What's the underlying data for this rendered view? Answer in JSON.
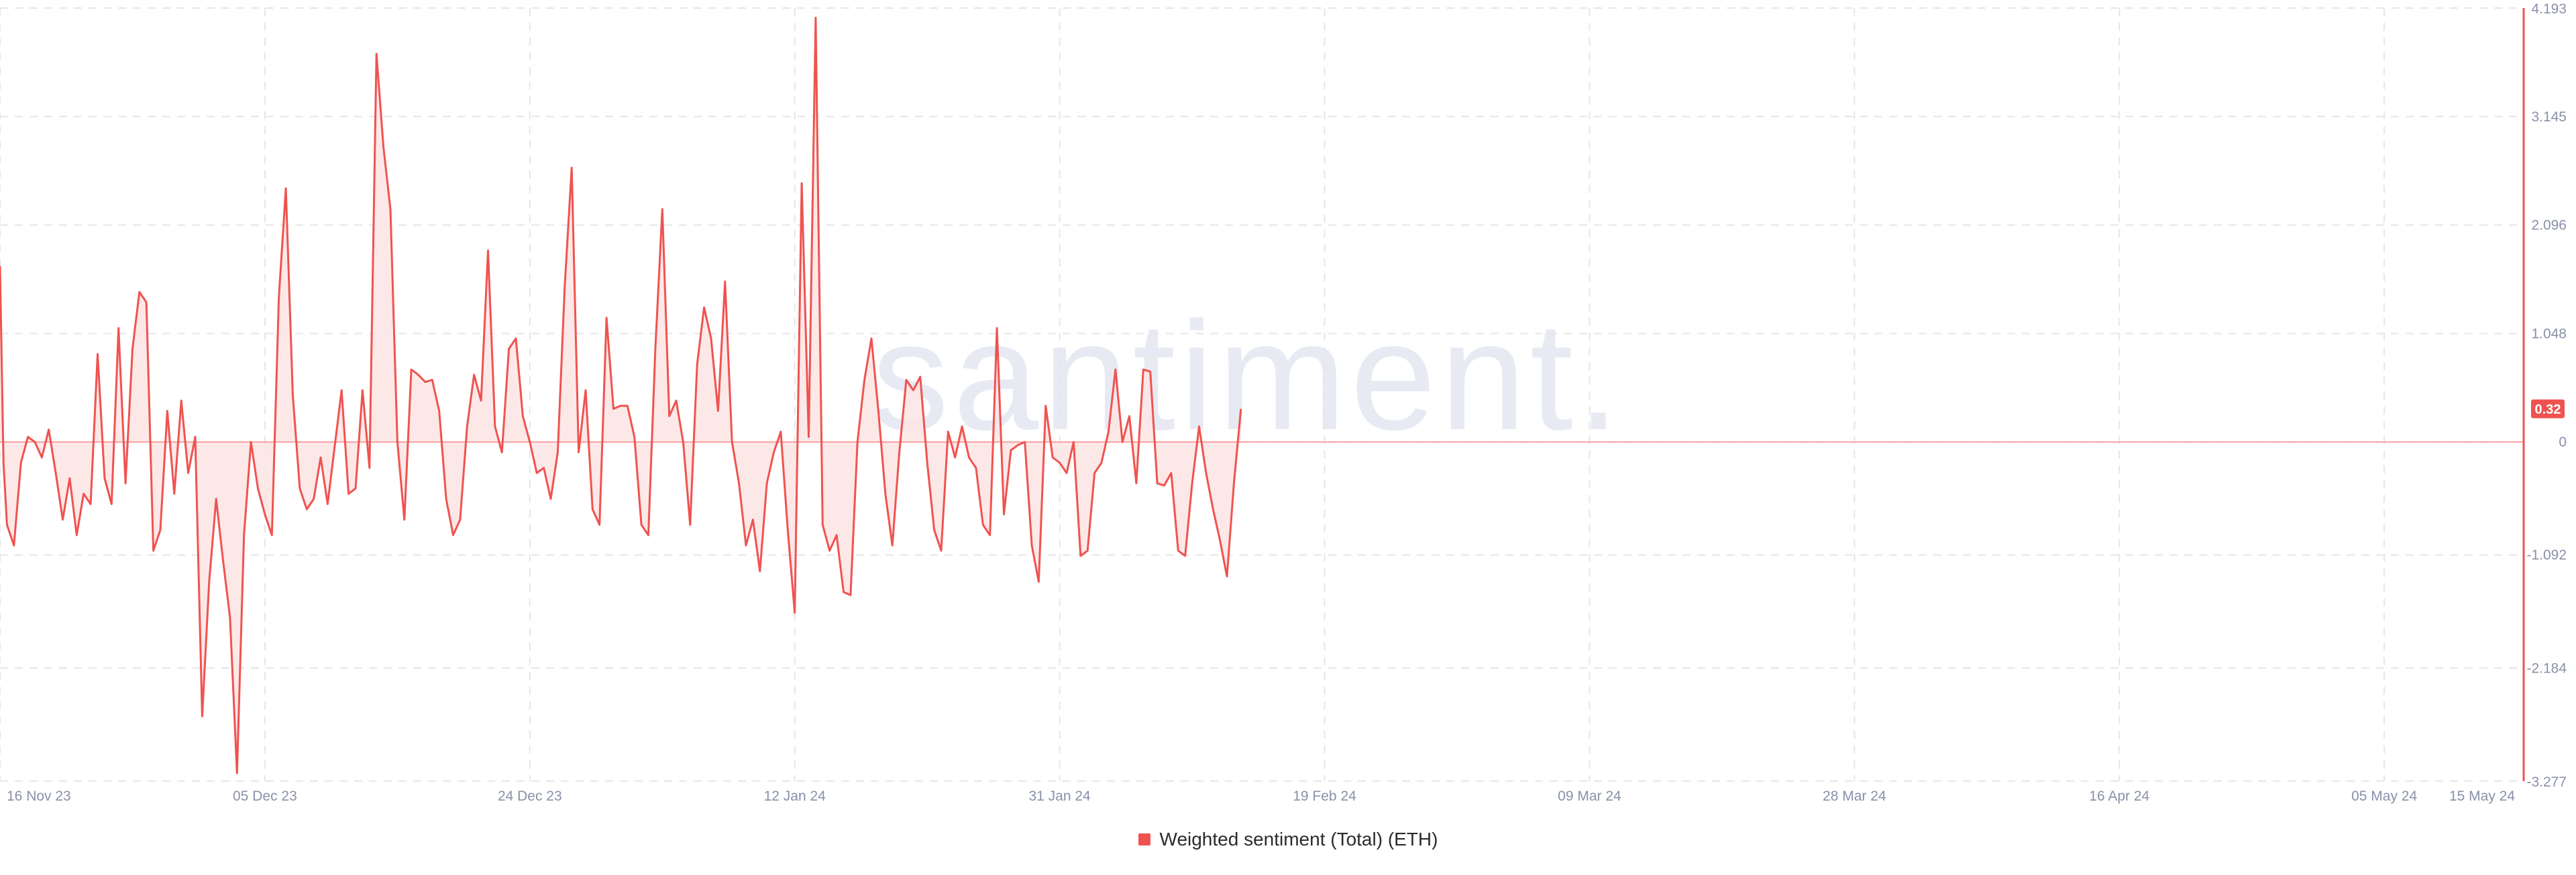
{
  "watermark": "santiment.",
  "chart_data": {
    "type": "area",
    "x_ticks": [
      "16 Nov 23",
      "05 Dec 23",
      "24 Dec 23",
      "12 Jan 24",
      "31 Jan 24",
      "19 Feb 24",
      "09 Mar 24",
      "28 Mar 24",
      "16 Apr 24",
      "05 May 24",
      "15 May 24"
    ],
    "y_ticks": [
      "4.193",
      "3.145",
      "2.096",
      "1.048",
      "0",
      "-1.092",
      "-2.184",
      "-3.277"
    ],
    "ylim": [
      -3.277,
      4.193
    ],
    "xlim": [
      "2023-11-16",
      "2024-05-15"
    ],
    "grid": true,
    "last_value_label": "0.32",
    "series": [
      {
        "name": "Weighted sentiment (Total) (ETH)",
        "color": "#ef5350",
        "fill": "#fde4e4",
        "points": [
          [
            "2023-11-16T00",
            1.7
          ],
          [
            "2023-11-16T06",
            -0.2
          ],
          [
            "2023-11-16T12",
            -0.8
          ],
          [
            "2023-11-17T00",
            -1.0
          ],
          [
            "2023-11-17T12",
            -0.2
          ],
          [
            "2023-11-18T00",
            0.05
          ],
          [
            "2023-11-18T12",
            0.0
          ],
          [
            "2023-11-19T00",
            -0.15
          ],
          [
            "2023-11-19T12",
            0.12
          ],
          [
            "2023-11-20T00",
            -0.3
          ],
          [
            "2023-11-20T12",
            -0.75
          ],
          [
            "2023-11-21T00",
            -0.35
          ],
          [
            "2023-11-21T12",
            -0.9
          ],
          [
            "2023-11-22T00",
            -0.5
          ],
          [
            "2023-11-22T12",
            -0.6
          ],
          [
            "2023-11-23T00",
            0.85
          ],
          [
            "2023-11-23T12",
            -0.35
          ],
          [
            "2023-11-24T00",
            -0.6
          ],
          [
            "2023-11-24T12",
            1.1
          ],
          [
            "2023-11-25T00",
            -0.4
          ],
          [
            "2023-11-25T12",
            0.9
          ],
          [
            "2023-11-26T00",
            1.45
          ],
          [
            "2023-11-26T12",
            1.35
          ],
          [
            "2023-11-27T00",
            -1.05
          ],
          [
            "2023-11-27T12",
            -0.85
          ],
          [
            "2023-11-28T00",
            0.3
          ],
          [
            "2023-11-28T12",
            -0.5
          ],
          [
            "2023-11-29T00",
            0.4
          ],
          [
            "2023-11-29T12",
            -0.3
          ],
          [
            "2023-11-30T00",
            0.05
          ],
          [
            "2023-11-30T12",
            -2.65
          ],
          [
            "2023-12-01T00",
            -1.35
          ],
          [
            "2023-12-01T12",
            -0.55
          ],
          [
            "2023-12-02T00",
            -1.15
          ],
          [
            "2023-12-02T12",
            -1.7
          ],
          [
            "2023-12-03T00",
            -3.2
          ],
          [
            "2023-12-03T12",
            -0.9
          ],
          [
            "2023-12-04T00",
            0.0
          ],
          [
            "2023-12-04T12",
            -0.45
          ],
          [
            "2023-12-05T00",
            -0.7
          ],
          [
            "2023-12-05T12",
            -0.9
          ],
          [
            "2023-12-06T00",
            1.4
          ],
          [
            "2023-12-06T12",
            2.45
          ],
          [
            "2023-12-07T00",
            0.45
          ],
          [
            "2023-12-07T12",
            -0.45
          ],
          [
            "2023-12-08T00",
            -0.65
          ],
          [
            "2023-12-08T12",
            -0.55
          ],
          [
            "2023-12-09T00",
            -0.15
          ],
          [
            "2023-12-09T12",
            -0.6
          ],
          [
            "2023-12-10T00",
            -0.05
          ],
          [
            "2023-12-10T12",
            0.5
          ],
          [
            "2023-12-11T00",
            -0.5
          ],
          [
            "2023-12-11T12",
            -0.45
          ],
          [
            "2023-12-12T00",
            0.5
          ],
          [
            "2023-12-12T12",
            -0.25
          ],
          [
            "2023-12-13T00",
            3.75
          ],
          [
            "2023-12-13T12",
            2.85
          ],
          [
            "2023-12-14T00",
            2.25
          ],
          [
            "2023-12-14T12",
            0.0
          ],
          [
            "2023-12-15T00",
            -0.75
          ],
          [
            "2023-12-15T12",
            0.7
          ],
          [
            "2023-12-16T00",
            0.65
          ],
          [
            "2023-12-16T12",
            0.58
          ],
          [
            "2023-12-17T00",
            0.6
          ],
          [
            "2023-12-17T12",
            0.3
          ],
          [
            "2023-12-18T00",
            -0.55
          ],
          [
            "2023-12-18T12",
            -0.9
          ],
          [
            "2023-12-19T00",
            -0.75
          ],
          [
            "2023-12-19T12",
            0.15
          ],
          [
            "2023-12-20T00",
            0.65
          ],
          [
            "2023-12-20T12",
            0.4
          ],
          [
            "2023-12-21T00",
            1.85
          ],
          [
            "2023-12-21T12",
            0.15
          ],
          [
            "2023-12-22T00",
            -0.1
          ],
          [
            "2023-12-22T12",
            0.9
          ],
          [
            "2023-12-23T00",
            1.0
          ],
          [
            "2023-12-23T12",
            0.25
          ],
          [
            "2023-12-24T00",
            0.0
          ],
          [
            "2023-12-24T12",
            -0.3
          ],
          [
            "2023-12-25T00",
            -0.25
          ],
          [
            "2023-12-25T12",
            -0.55
          ],
          [
            "2023-12-26T00",
            -0.1
          ],
          [
            "2023-12-26T12",
            1.5
          ],
          [
            "2023-12-27T00",
            2.65
          ],
          [
            "2023-12-27T12",
            -0.1
          ],
          [
            "2023-12-28T00",
            0.5
          ],
          [
            "2023-12-28T12",
            -0.65
          ],
          [
            "2023-12-29T00",
            -0.8
          ],
          [
            "2023-12-29T12",
            1.2
          ],
          [
            "2023-12-30T00",
            0.32
          ],
          [
            "2023-12-30T12",
            0.35
          ],
          [
            "2023-12-31T00",
            0.35
          ],
          [
            "2023-12-31T12",
            0.05
          ],
          [
            "2024-01-01T00",
            -0.8
          ],
          [
            "2024-01-01T12",
            -0.9
          ],
          [
            "2024-01-02T00",
            0.9
          ],
          [
            "2024-01-02T12",
            2.25
          ],
          [
            "2024-01-03T00",
            0.25
          ],
          [
            "2024-01-03T12",
            0.4
          ],
          [
            "2024-01-04T00",
            0.0
          ],
          [
            "2024-01-04T12",
            -0.8
          ],
          [
            "2024-01-05T00",
            0.75
          ],
          [
            "2024-01-05T12",
            1.3
          ],
          [
            "2024-01-06T00",
            1.0
          ],
          [
            "2024-01-06T12",
            0.3
          ],
          [
            "2024-01-07T00",
            1.55
          ],
          [
            "2024-01-07T12",
            0.0
          ],
          [
            "2024-01-08T00",
            -0.4
          ],
          [
            "2024-01-08T12",
            -1.0
          ],
          [
            "2024-01-09T00",
            -0.75
          ],
          [
            "2024-01-09T12",
            -1.25
          ],
          [
            "2024-01-10T00",
            -0.4
          ],
          [
            "2024-01-10T12",
            -0.1
          ],
          [
            "2024-01-11T00",
            0.1
          ],
          [
            "2024-01-11T12",
            -0.85
          ],
          [
            "2024-01-12T00",
            -1.65
          ],
          [
            "2024-01-12T12",
            2.5
          ],
          [
            "2024-01-13T00",
            0.05
          ],
          [
            "2024-01-13T12",
            4.1
          ],
          [
            "2024-01-14T00",
            -0.8
          ],
          [
            "2024-01-14T12",
            -1.05
          ],
          [
            "2024-01-15T00",
            -0.9
          ],
          [
            "2024-01-15T12",
            -1.45
          ],
          [
            "2024-01-16T00",
            -1.48
          ],
          [
            "2024-01-16T12",
            0.0
          ],
          [
            "2024-01-17T00",
            0.6
          ],
          [
            "2024-01-17T12",
            1.0
          ],
          [
            "2024-01-18T00",
            0.3
          ],
          [
            "2024-01-18T12",
            -0.5
          ],
          [
            "2024-01-19T00",
            -1.0
          ],
          [
            "2024-01-19T12",
            -0.1
          ],
          [
            "2024-01-20T00",
            0.6
          ],
          [
            "2024-01-20T12",
            0.5
          ],
          [
            "2024-01-21T00",
            0.63
          ],
          [
            "2024-01-21T12",
            -0.2
          ],
          [
            "2024-01-22T00",
            -0.85
          ],
          [
            "2024-01-22T12",
            -1.05
          ],
          [
            "2024-01-23T00",
            0.1
          ],
          [
            "2024-01-23T12",
            -0.15
          ],
          [
            "2024-01-24T00",
            0.15
          ],
          [
            "2024-01-24T12",
            -0.15
          ],
          [
            "2024-01-25T00",
            -0.25
          ],
          [
            "2024-01-25T12",
            -0.8
          ],
          [
            "2024-01-26T00",
            -0.9
          ],
          [
            "2024-01-26T12",
            1.1
          ],
          [
            "2024-01-27T00",
            -0.7
          ],
          [
            "2024-01-27T12",
            -0.08
          ],
          [
            "2024-01-28T00",
            -0.03
          ],
          [
            "2024-01-28T12",
            0.0
          ],
          [
            "2024-01-29T00",
            -1.0
          ],
          [
            "2024-01-29T12",
            -1.35
          ],
          [
            "2024-01-30T00",
            0.35
          ],
          [
            "2024-01-30T12",
            -0.15
          ],
          [
            "2024-01-31T00",
            -0.2
          ],
          [
            "2024-01-31T12",
            -0.3
          ],
          [
            "2024-02-01T00",
            0.0
          ],
          [
            "2024-02-01T12",
            -1.1
          ],
          [
            "2024-02-02T00",
            -1.05
          ],
          [
            "2024-02-02T12",
            -0.3
          ],
          [
            "2024-02-03T00",
            -0.2
          ],
          [
            "2024-02-03T12",
            0.1
          ],
          [
            "2024-02-04T00",
            0.7
          ],
          [
            "2024-02-04T12",
            0.0
          ],
          [
            "2024-02-05T00",
            0.25
          ],
          [
            "2024-02-05T12",
            -0.4
          ],
          [
            "2024-02-06T00",
            0.7
          ],
          [
            "2024-02-06T12",
            0.68
          ],
          [
            "2024-02-07T00",
            -0.4
          ],
          [
            "2024-02-07T12",
            -0.42
          ],
          [
            "2024-02-08T00",
            -0.3
          ],
          [
            "2024-02-08T12",
            -1.05
          ],
          [
            "2024-02-09T00",
            -1.1
          ],
          [
            "2024-02-09T12",
            -0.4
          ],
          [
            "2024-02-10T00",
            0.15
          ],
          [
            "2024-02-10T12",
            -0.3
          ],
          [
            "2024-02-11T00",
            -0.65
          ],
          [
            "2024-02-11T12",
            -0.95
          ],
          [
            "2024-02-12T00",
            -1.3
          ],
          [
            "2024-02-12T12",
            -0.4
          ],
          [
            "2024-02-13T00",
            0.32
          ]
        ]
      }
    ]
  }
}
